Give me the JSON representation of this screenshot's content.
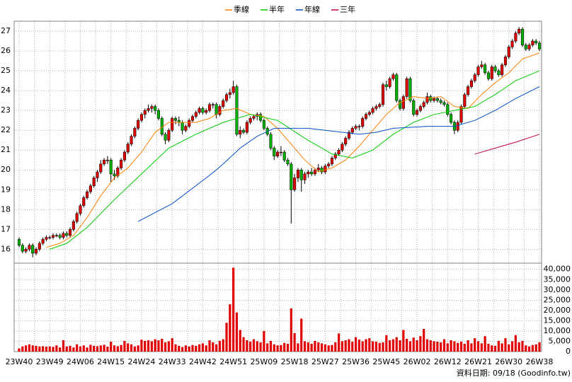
{
  "chart_data": {
    "type": "candlestick",
    "up_color": "#e00000",
    "down_color": "#00b000",
    "ylim": [
      15.3,
      27.5
    ],
    "yticks": [
      16,
      17,
      18,
      19,
      20,
      21,
      22,
      23,
      24,
      25,
      26,
      27
    ],
    "grid": true,
    "categories": [
      "23W40",
      null,
      null,
      null,
      null,
      null,
      null,
      null,
      null,
      "23W49",
      null,
      null,
      null,
      null,
      null,
      null,
      null,
      null,
      "24W06",
      null,
      null,
      null,
      null,
      null,
      null,
      null,
      null,
      "24W15",
      null,
      null,
      null,
      null,
      null,
      null,
      null,
      null,
      "24W24",
      null,
      null,
      null,
      null,
      null,
      null,
      null,
      null,
      "24W33",
      null,
      null,
      null,
      null,
      null,
      null,
      null,
      null,
      "24W42",
      null,
      null,
      null,
      null,
      null,
      null,
      null,
      null,
      "24W51",
      null,
      null,
      null,
      null,
      null,
      null,
      null,
      null,
      "25W09",
      null,
      null,
      null,
      null,
      null,
      null,
      null,
      null,
      "25W18",
      null,
      null,
      null,
      null,
      null,
      null,
      null,
      null,
      "25W27",
      null,
      null,
      null,
      null,
      null,
      null,
      null,
      null,
      "25W36",
      null,
      null,
      null,
      null,
      null,
      null,
      null,
      null,
      "25W45",
      null,
      null,
      null,
      null,
      null,
      null,
      null,
      null,
      "26W02",
      null,
      null,
      null,
      null,
      null,
      null,
      null,
      null,
      "26W12",
      null,
      null,
      null,
      null,
      null,
      null,
      null,
      null,
      "26W21",
      null,
      null,
      null,
      null,
      null,
      null,
      null,
      null,
      "26W30",
      null,
      null,
      null,
      null,
      null,
      null,
      null,
      null,
      "26W38"
    ],
    "candles": [
      [
        16.5,
        16.6,
        16.1,
        16.2
      ],
      [
        16.2,
        16.3,
        15.8,
        15.9
      ],
      [
        15.9,
        16.1,
        15.8,
        16.0
      ],
      [
        16.0,
        16.3,
        15.9,
        16.2
      ],
      [
        16.2,
        16.3,
        15.6,
        15.8
      ],
      [
        15.8,
        16.1,
        15.7,
        16.0
      ],
      [
        16.0,
        16.4,
        15.9,
        16.3
      ],
      [
        16.3,
        16.6,
        16.2,
        16.5
      ],
      [
        16.5,
        16.7,
        16.4,
        16.6
      ],
      [
        16.6,
        16.7,
        16.5,
        16.6
      ],
      [
        16.6,
        16.8,
        16.5,
        16.7
      ],
      [
        16.7,
        16.8,
        16.6,
        16.7
      ],
      [
        16.7,
        16.8,
        16.5,
        16.6
      ],
      [
        16.6,
        16.9,
        16.5,
        16.8
      ],
      [
        16.8,
        16.9,
        16.6,
        16.7
      ],
      [
        16.7,
        17.1,
        16.6,
        17.0
      ],
      [
        17.0,
        17.5,
        16.9,
        17.4
      ],
      [
        17.4,
        17.9,
        17.3,
        17.8
      ],
      [
        17.8,
        18.3,
        17.7,
        18.2
      ],
      [
        18.2,
        18.7,
        18.1,
        18.6
      ],
      [
        18.6,
        19.0,
        18.5,
        18.9
      ],
      [
        18.9,
        19.3,
        18.8,
        19.2
      ],
      [
        19.2,
        19.7,
        19.1,
        19.6
      ],
      [
        19.6,
        20.0,
        19.4,
        19.9
      ],
      [
        19.9,
        20.5,
        19.8,
        20.3
      ],
      [
        20.3,
        20.6,
        20.2,
        20.5
      ],
      [
        20.5,
        20.7,
        20.3,
        20.5
      ],
      [
        20.5,
        20.6,
        19.4,
        19.8
      ],
      [
        19.8,
        20.0,
        19.5,
        19.7
      ],
      [
        19.7,
        20.2,
        19.6,
        20.1
      ],
      [
        20.1,
        20.6,
        20.0,
        20.5
      ],
      [
        20.5,
        21.0,
        20.4,
        20.9
      ],
      [
        20.9,
        21.4,
        20.8,
        21.3
      ],
      [
        21.3,
        21.8,
        21.2,
        21.7
      ],
      [
        21.7,
        22.2,
        21.6,
        22.1
      ],
      [
        22.1,
        22.6,
        22.0,
        22.5
      ],
      [
        22.5,
        22.9,
        22.4,
        22.8
      ],
      [
        22.8,
        23.1,
        22.6,
        23.0
      ],
      [
        23.0,
        23.3,
        22.9,
        23.1
      ],
      [
        23.1,
        23.3,
        22.9,
        23.2
      ],
      [
        23.2,
        23.3,
        22.8,
        23.0
      ],
      [
        23.0,
        23.1,
        22.5,
        22.6
      ],
      [
        22.6,
        22.7,
        21.7,
        21.8
      ],
      [
        21.8,
        21.9,
        21.3,
        21.5
      ],
      [
        21.5,
        22.1,
        21.4,
        22.0
      ],
      [
        22.0,
        22.7,
        21.9,
        22.6
      ],
      [
        22.6,
        22.7,
        22.3,
        22.5
      ],
      [
        22.5,
        22.7,
        22.2,
        22.4
      ],
      [
        22.4,
        22.5,
        21.8,
        22.0
      ],
      [
        22.0,
        22.3,
        21.9,
        22.2
      ],
      [
        22.2,
        22.6,
        22.1,
        22.5
      ],
      [
        22.5,
        22.8,
        22.4,
        22.7
      ],
      [
        22.7,
        23.0,
        22.6,
        22.9
      ],
      [
        22.9,
        23.2,
        22.8,
        23.1
      ],
      [
        23.1,
        23.2,
        22.8,
        22.9
      ],
      [
        22.9,
        23.1,
        22.8,
        23.0
      ],
      [
        23.0,
        23.4,
        22.9,
        23.3
      ],
      [
        23.3,
        23.4,
        23.1,
        23.3
      ],
      [
        23.3,
        23.4,
        22.6,
        22.8
      ],
      [
        22.8,
        23.3,
        22.7,
        23.2
      ],
      [
        23.2,
        23.6,
        23.1,
        23.5
      ],
      [
        23.5,
        23.9,
        23.4,
        23.8
      ],
      [
        23.8,
        24.1,
        23.6,
        23.9
      ],
      [
        23.9,
        24.5,
        23.8,
        24.2
      ],
      [
        24.2,
        24.3,
        21.7,
        21.8
      ],
      [
        21.8,
        22.2,
        21.6,
        22.0
      ],
      [
        22.0,
        22.1,
        21.8,
        21.9
      ],
      [
        21.9,
        22.5,
        21.8,
        22.4
      ],
      [
        22.4,
        22.7,
        22.3,
        22.6
      ],
      [
        22.6,
        22.8,
        22.5,
        22.7
      ],
      [
        22.7,
        22.9,
        22.5,
        22.8
      ],
      [
        22.8,
        22.9,
        22.4,
        22.5
      ],
      [
        22.5,
        22.6,
        22.0,
        22.1
      ],
      [
        22.1,
        22.2,
        21.7,
        21.8
      ],
      [
        21.8,
        21.9,
        21.0,
        21.1
      ],
      [
        21.1,
        21.2,
        20.5,
        20.7
      ],
      [
        20.7,
        21.0,
        20.6,
        20.9
      ],
      [
        20.9,
        21.2,
        20.7,
        20.9
      ],
      [
        20.9,
        21.0,
        20.4,
        20.5
      ],
      [
        20.5,
        20.6,
        20.2,
        20.3
      ],
      [
        20.3,
        20.4,
        17.3,
        19.0
      ],
      [
        19.0,
        19.8,
        18.9,
        19.6
      ],
      [
        19.6,
        20.1,
        19.4,
        20.0
      ],
      [
        20.0,
        20.1,
        18.9,
        19.5
      ],
      [
        19.5,
        19.9,
        19.3,
        19.8
      ],
      [
        19.8,
        20.0,
        19.6,
        19.9
      ],
      [
        19.9,
        20.1,
        19.7,
        19.8
      ],
      [
        19.8,
        20.1,
        19.7,
        20.0
      ],
      [
        20.0,
        20.3,
        19.9,
        20.1
      ],
      [
        20.1,
        20.2,
        19.8,
        19.9
      ],
      [
        19.9,
        20.3,
        19.8,
        20.2
      ],
      [
        20.2,
        20.4,
        20.1,
        20.3
      ],
      [
        20.3,
        20.7,
        20.2,
        20.6
      ],
      [
        20.6,
        20.9,
        20.5,
        20.8
      ],
      [
        20.8,
        21.1,
        20.7,
        21.0
      ],
      [
        21.0,
        21.4,
        20.9,
        21.3
      ],
      [
        21.3,
        21.7,
        21.2,
        21.6
      ],
      [
        21.6,
        22.0,
        21.5,
        21.9
      ],
      [
        21.9,
        22.2,
        21.8,
        22.1
      ],
      [
        22.1,
        22.3,
        22.0,
        22.2
      ],
      [
        22.2,
        22.3,
        22.0,
        22.2
      ],
      [
        22.2,
        22.7,
        22.1,
        22.6
      ],
      [
        22.6,
        22.9,
        22.5,
        22.8
      ],
      [
        22.8,
        23.0,
        22.7,
        22.9
      ],
      [
        22.9,
        23.2,
        22.8,
        23.1
      ],
      [
        23.1,
        23.3,
        23.0,
        23.2
      ],
      [
        23.2,
        23.4,
        23.1,
        23.3
      ],
      [
        23.3,
        24.4,
        23.2,
        24.3
      ],
      [
        24.3,
        24.5,
        24.0,
        24.2
      ],
      [
        24.2,
        24.7,
        24.1,
        24.6
      ],
      [
        24.6,
        24.9,
        24.5,
        24.8
      ],
      [
        24.8,
        24.9,
        23.4,
        23.5
      ],
      [
        23.5,
        23.6,
        23.0,
        23.1
      ],
      [
        23.1,
        23.8,
        23.0,
        23.7
      ],
      [
        23.7,
        24.7,
        23.6,
        24.6
      ],
      [
        24.6,
        24.7,
        23.4,
        23.5
      ],
      [
        23.5,
        23.6,
        22.7,
        22.8
      ],
      [
        22.8,
        23.1,
        22.7,
        23.0
      ],
      [
        23.0,
        23.3,
        22.9,
        23.2
      ],
      [
        23.2,
        23.5,
        23.1,
        23.4
      ],
      [
        23.4,
        23.9,
        23.3,
        23.7
      ],
      [
        23.7,
        23.8,
        23.4,
        23.5
      ],
      [
        23.5,
        23.7,
        23.4,
        23.6
      ],
      [
        23.6,
        23.7,
        23.4,
        23.5
      ],
      [
        23.5,
        23.6,
        23.3,
        23.4
      ],
      [
        23.4,
        23.5,
        23.2,
        23.3
      ],
      [
        23.3,
        23.4,
        22.7,
        22.8
      ],
      [
        22.8,
        22.9,
        22.3,
        22.4
      ],
      [
        22.4,
        22.5,
        21.8,
        22.0
      ],
      [
        22.0,
        22.5,
        21.9,
        22.4
      ],
      [
        22.4,
        23.3,
        22.3,
        23.2
      ],
      [
        23.2,
        23.9,
        23.1,
        23.8
      ],
      [
        23.8,
        24.3,
        23.7,
        24.2
      ],
      [
        24.2,
        24.6,
        24.1,
        24.5
      ],
      [
        24.5,
        24.9,
        24.4,
        24.8
      ],
      [
        24.8,
        25.3,
        24.7,
        25.2
      ],
      [
        25.2,
        25.5,
        25.1,
        25.3
      ],
      [
        25.3,
        25.4,
        24.8,
        24.9
      ],
      [
        24.9,
        25.0,
        24.5,
        24.6
      ],
      [
        24.6,
        25.3,
        24.5,
        25.2
      ],
      [
        25.2,
        25.3,
        24.9,
        25.0
      ],
      [
        25.0,
        25.1,
        24.7,
        24.8
      ],
      [
        24.8,
        25.4,
        24.7,
        25.3
      ],
      [
        25.3,
        25.8,
        25.2,
        25.7
      ],
      [
        25.7,
        26.3,
        25.6,
        26.2
      ],
      [
        26.2,
        26.6,
        26.1,
        26.5
      ],
      [
        26.5,
        27.0,
        26.4,
        26.9
      ],
      [
        26.9,
        27.2,
        26.8,
        27.1
      ],
      [
        27.1,
        27.2,
        26.2,
        26.3
      ],
      [
        26.3,
        26.4,
        26.0,
        26.1
      ],
      [
        26.1,
        26.4,
        26.0,
        26.3
      ],
      [
        26.3,
        26.6,
        26.2,
        26.5
      ],
      [
        26.5,
        26.6,
        26.3,
        26.4
      ],
      [
        26.4,
        26.5,
        26.0,
        26.1
      ]
    ],
    "series": [
      {
        "name": "季線",
        "color": "#ff7f00",
        "x": [
          8,
          12,
          16,
          20,
          24,
          28,
          32,
          36,
          40,
          44,
          48,
          52,
          56,
          60,
          64,
          68,
          72,
          76,
          80,
          84,
          88,
          92,
          96,
          100,
          104,
          108,
          112,
          116,
          120,
          124,
          128,
          132,
          136,
          140,
          144,
          148,
          153
        ],
        "values": [
          16.1,
          16.3,
          16.7,
          17.6,
          18.7,
          19.6,
          20.1,
          20.9,
          21.9,
          22.4,
          22.4,
          22.4,
          22.6,
          23.0,
          23.1,
          22.8,
          22.7,
          22.1,
          21.3,
          20.5,
          19.9,
          20.1,
          20.5,
          21.2,
          22.0,
          22.8,
          23.4,
          23.7,
          23.6,
          23.7,
          23.2,
          23.1,
          23.8,
          24.4,
          24.9,
          25.6,
          25.9
        ]
      },
      {
        "name": "半年",
        "color": "#00cc00",
        "x": [
          9,
          14,
          20,
          28,
          36,
          44,
          52,
          60,
          68,
          76,
          84,
          92,
          98,
          104,
          110,
          116,
          122,
          128,
          134,
          140,
          146,
          153
        ],
        "values": [
          16.0,
          16.3,
          17.1,
          18.5,
          19.8,
          21.1,
          21.8,
          22.4,
          22.8,
          22.5,
          21.6,
          20.8,
          20.6,
          21.0,
          21.8,
          22.4,
          22.8,
          23.0,
          23.2,
          23.8,
          24.5,
          25.0
        ]
      },
      {
        "name": "年線",
        "color": "#0050c8",
        "x": [
          35,
          45,
          55,
          58,
          60,
          65,
          70,
          75,
          85,
          95,
          100,
          105,
          110,
          120,
          128,
          134,
          140,
          146,
          153
        ],
        "values": [
          17.4,
          18.3,
          19.6,
          20.0,
          20.3,
          21.1,
          21.7,
          22.1,
          22.1,
          21.9,
          21.8,
          21.9,
          22.1,
          22.2,
          22.2,
          22.5,
          23.0,
          23.6,
          24.2
        ]
      },
      {
        "name": "三年",
        "color": "#c00040",
        "x": [
          134,
          140,
          146,
          153
        ],
        "values": [
          20.8,
          21.1,
          21.4,
          21.8
        ]
      }
    ],
    "volume": {
      "color": "#e00000",
      "ylim": [
        0,
        43000
      ],
      "yticks": [
        0,
        {
          "value": 5000,
          "label": "5,000"
        },
        {
          "value": 10000,
          "label": "10,000"
        },
        {
          "value": 15000,
          "label": "15,000"
        },
        {
          "value": 20000,
          "label": "20,000"
        },
        {
          "value": 25000,
          "label": "25,000"
        },
        {
          "value": 30000,
          "label": "30,000"
        },
        {
          "value": 35000,
          "label": "35,000"
        },
        {
          "value": 40000,
          "label": "40,000"
        }
      ],
      "values": [
        1500,
        2500,
        3000,
        3500,
        3000,
        2800,
        2500,
        2600,
        2400,
        2500,
        2300,
        3000,
        2000,
        5500,
        2500,
        2800,
        2000,
        3500,
        2500,
        3000,
        2000,
        3300,
        2800,
        2600,
        3000,
        3300,
        2400,
        4800,
        3000,
        2600,
        3200,
        5200,
        4000,
        3500,
        2500,
        3000,
        5800,
        5200,
        5500,
        5000,
        6000,
        5500,
        6200,
        4500,
        5000,
        6500,
        3500,
        2800,
        2200,
        3000,
        2500,
        3200,
        2800,
        3500,
        4000,
        3000,
        5500,
        4500,
        3500,
        5200,
        6000,
        14000,
        23000,
        40800,
        19000,
        10500,
        7000,
        5500,
        4800,
        6000,
        5000,
        4500,
        10000,
        4000,
        5200,
        3500,
        3000,
        3200,
        4200,
        3800,
        21000,
        9000,
        4000,
        16000,
        5000,
        4500,
        3800,
        5200,
        4500,
        4000,
        3500,
        3000,
        3200,
        4500,
        8800,
        5000,
        5500,
        6000,
        4800,
        7000,
        5800,
        5000,
        6000,
        6500,
        5000,
        4800,
        4200,
        4500,
        8000,
        5500,
        6000,
        7000,
        5500,
        10500,
        6200,
        5000,
        6800,
        5500,
        7500,
        11000,
        6000,
        5500,
        5000,
        4800,
        4500,
        6000,
        4000,
        5500,
        5000,
        4200,
        4800,
        3800,
        5500,
        4000,
        6500,
        5000,
        4000,
        7500,
        3800,
        3000,
        2800,
        5200,
        4000,
        6500,
        3500,
        5000,
        8000,
        4500,
        5200,
        3000,
        2500,
        3200,
        3500,
        4500
      ]
    },
    "footer": "資料日期: 09/18 (Goodinfo.tw)"
  }
}
